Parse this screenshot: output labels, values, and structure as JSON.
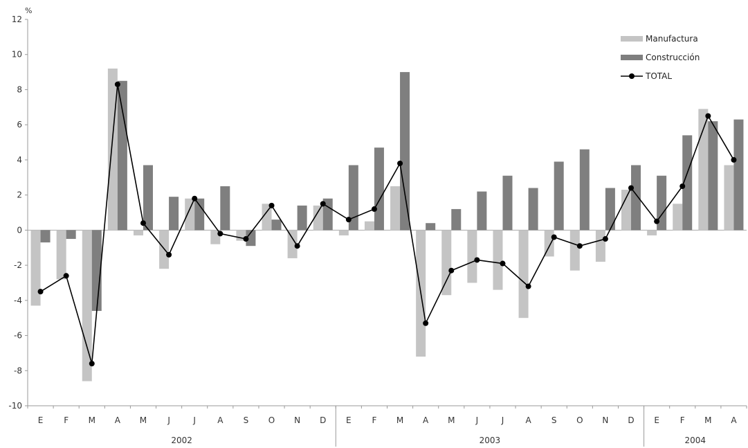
{
  "chart_data": {
    "type": "bar",
    "unit_label": "%",
    "ylim": [
      -10,
      12
    ],
    "yticks": [
      -10,
      -8,
      -6,
      -4,
      -2,
      0,
      2,
      4,
      6,
      8,
      10,
      12
    ],
    "categories": [
      "E",
      "F",
      "M",
      "A",
      "M",
      "J",
      "J",
      "A",
      "S",
      "O",
      "N",
      "D",
      "E",
      "F",
      "M",
      "A",
      "M",
      "J",
      "J",
      "A",
      "S",
      "O",
      "N",
      "D",
      "E",
      "F",
      "M",
      "A"
    ],
    "year_groups": [
      {
        "label": "2002",
        "start": 0,
        "end": 11
      },
      {
        "label": "2003",
        "start": 12,
        "end": 23
      },
      {
        "label": "2004",
        "start": 24,
        "end": 27
      }
    ],
    "series": [
      {
        "name": "Manufactura",
        "kind": "bar",
        "color": "#c4c4c4",
        "values": [
          -4.3,
          -2.8,
          -8.6,
          9.2,
          -0.3,
          -2.2,
          1.8,
          -0.8,
          -0.6,
          1.5,
          -1.6,
          1.4,
          -0.3,
          0.5,
          2.5,
          -7.2,
          -3.7,
          -3.0,
          -3.4,
          -5.0,
          -1.5,
          -2.3,
          -1.8,
          2.3,
          -0.3,
          1.5,
          6.9,
          3.7
        ]
      },
      {
        "name": "Construcción",
        "kind": "bar",
        "color": "#7f7f7f",
        "values": [
          -0.7,
          -0.5,
          -4.6,
          8.5,
          3.7,
          1.9,
          1.8,
          2.5,
          -0.9,
          0.6,
          1.4,
          1.8,
          3.7,
          4.7,
          9.0,
          0.4,
          1.2,
          2.2,
          3.1,
          2.4,
          3.9,
          4.6,
          2.4,
          3.7,
          3.1,
          5.4,
          6.2,
          6.3
        ]
      },
      {
        "name": "TOTAL",
        "kind": "line",
        "color": "#000000",
        "values": [
          -3.5,
          -2.6,
          -7.6,
          8.3,
          0.4,
          -1.4,
          1.8,
          -0.2,
          -0.5,
          1.4,
          -0.9,
          1.5,
          0.6,
          1.2,
          3.8,
          -5.3,
          -2.3,
          -1.7,
          -1.9,
          -3.2,
          -0.4,
          -0.9,
          -0.5,
          2.4,
          0.5,
          2.5,
          6.5,
          4.0
        ]
      }
    ],
    "legend": {
      "position": "top-right",
      "entries": [
        "Manufactura",
        "Construcción",
        "TOTAL"
      ]
    },
    "grid": false
  }
}
